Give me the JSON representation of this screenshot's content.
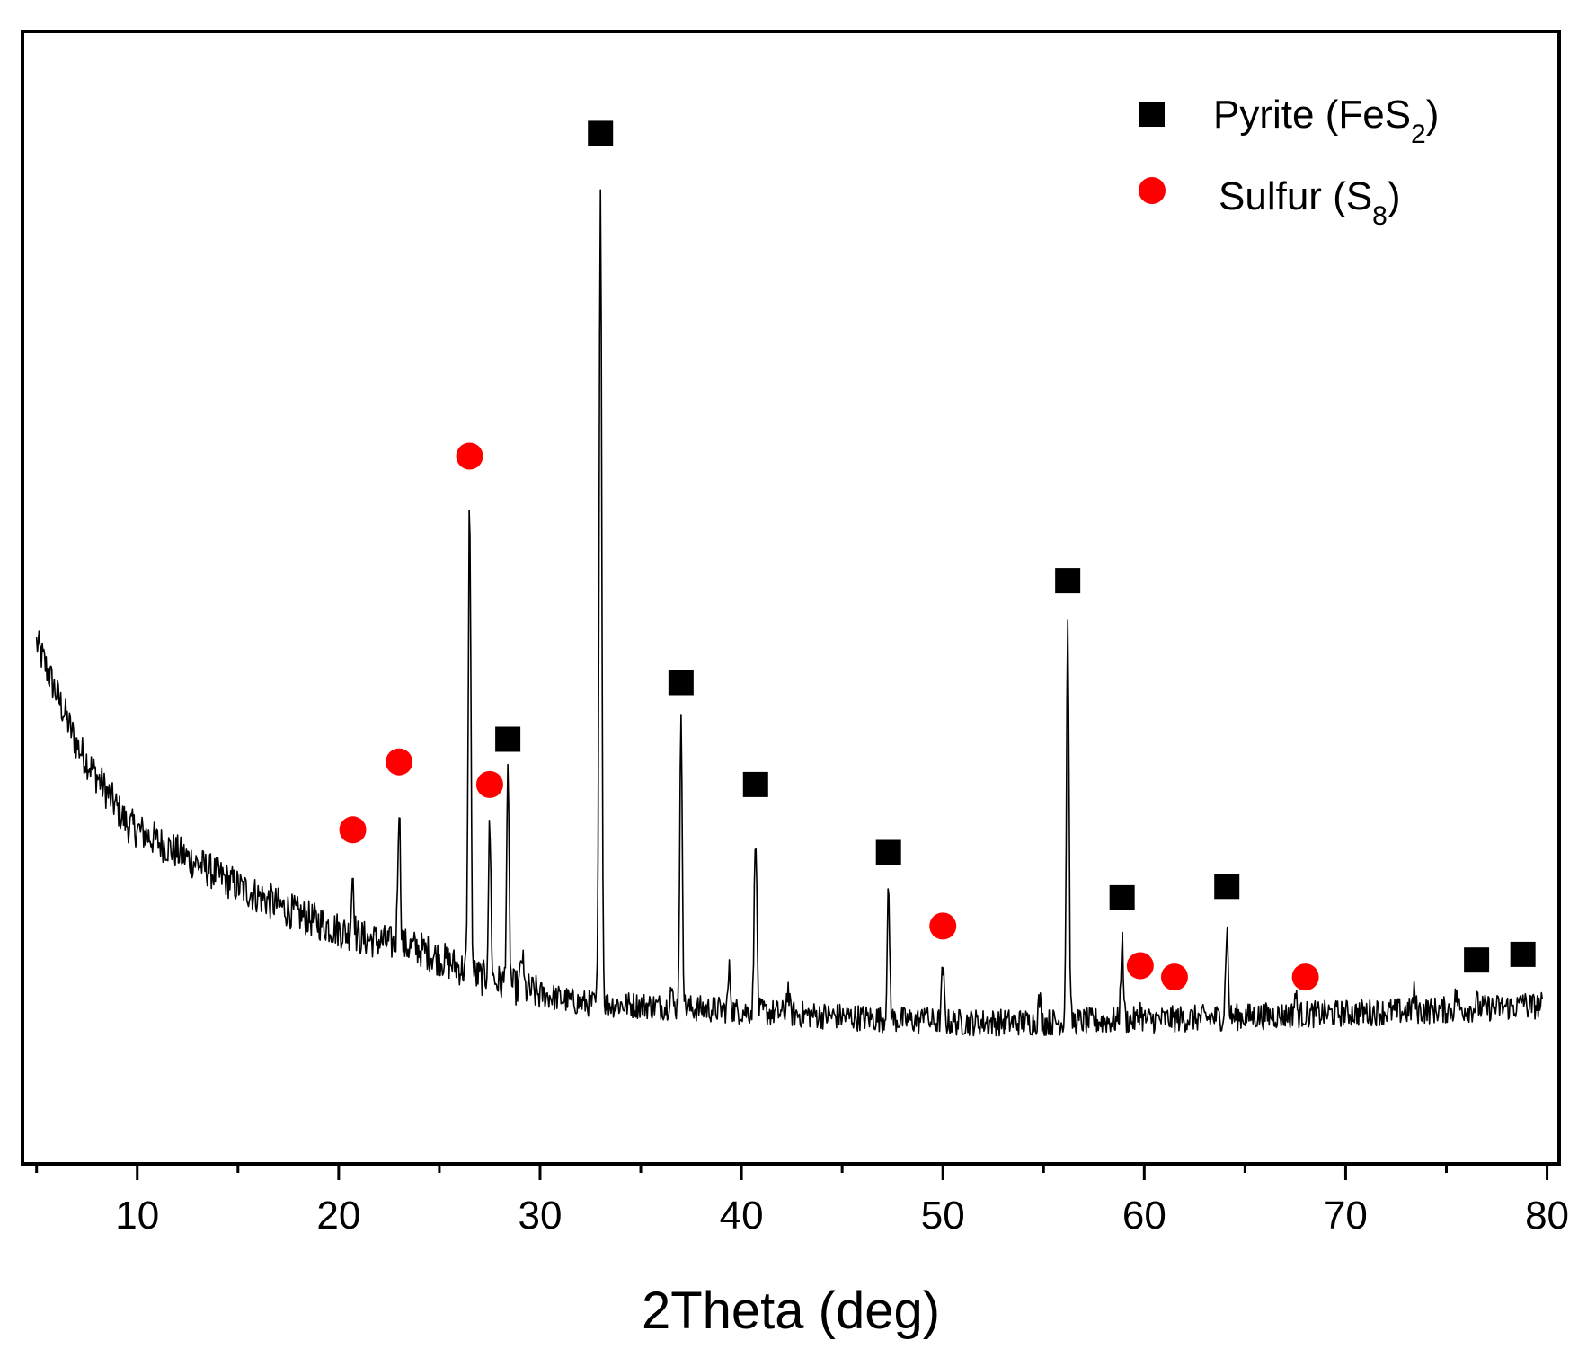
{
  "chart_data": {
    "type": "line",
    "title": "",
    "xlabel": "2Theta (deg)",
    "ylabel": "",
    "xlim": [
      4.3,
      80.6
    ],
    "ylim": [
      0,
      100
    ],
    "x_ticks_major": [
      10,
      20,
      30,
      40,
      50,
      60,
      70,
      80
    ],
    "x_tick_labels": [
      "10",
      "20",
      "30",
      "40",
      "50",
      "60",
      "70",
      "80"
    ],
    "x_ticks_minor": [
      5,
      15,
      25,
      35,
      45,
      55,
      65,
      75
    ],
    "y_ticks": [],
    "grid": false,
    "legend_position": "top-right",
    "colors": {
      "line": "#000000",
      "pyrite": "#000000",
      "sulfur": "#ff0000",
      "axes": "#000000"
    },
    "background_curve": {
      "description": "decaying baseline intensity",
      "points": [
        [
          5,
          46
        ],
        [
          7,
          37
        ],
        [
          9.5,
          30
        ],
        [
          12,
          27.5
        ],
        [
          15,
          24.5
        ],
        [
          18,
          22
        ],
        [
          21,
          20
        ],
        [
          24,
          19
        ],
        [
          27,
          16.5
        ],
        [
          30,
          15
        ],
        [
          32,
          14.2
        ],
        [
          35,
          14
        ],
        [
          40,
          13.5
        ],
        [
          45,
          13
        ],
        [
          50,
          12.5
        ],
        [
          55,
          12.5
        ],
        [
          60,
          12.7
        ],
        [
          65,
          13
        ],
        [
          70,
          13.3
        ],
        [
          75,
          13.6
        ],
        [
          80,
          14
        ]
      ]
    },
    "series": [
      {
        "name": "Pyrite (FeS",
        "subscript": "2",
        "suffix": ")",
        "marker": "square",
        "peaks": [
          {
            "x": 28.4,
            "y": 37.5
          },
          {
            "x": 33.0,
            "y": 91
          },
          {
            "x": 37.0,
            "y": 42.5
          },
          {
            "x": 40.7,
            "y": 33.5
          },
          {
            "x": 47.3,
            "y": 27.5
          },
          {
            "x": 56.2,
            "y": 51.5
          },
          {
            "x": 58.9,
            "y": 23.5
          },
          {
            "x": 64.1,
            "y": 24.5
          },
          {
            "x": 76.5,
            "y": 18
          },
          {
            "x": 78.8,
            "y": 18.5
          }
        ]
      },
      {
        "name": "Sulfur (S",
        "subscript": "8",
        "suffix": ")",
        "marker": "circle",
        "peaks": [
          {
            "x": 20.7,
            "y": 29.5
          },
          {
            "x": 23.0,
            "y": 35.5
          },
          {
            "x": 26.5,
            "y": 62.5
          },
          {
            "x": 27.5,
            "y": 33.5
          },
          {
            "x": 50.0,
            "y": 21
          },
          {
            "x": 59.8,
            "y": 17.5
          },
          {
            "x": 61.5,
            "y": 16.5
          },
          {
            "x": 68.0,
            "y": 16.5
          }
        ]
      }
    ]
  }
}
